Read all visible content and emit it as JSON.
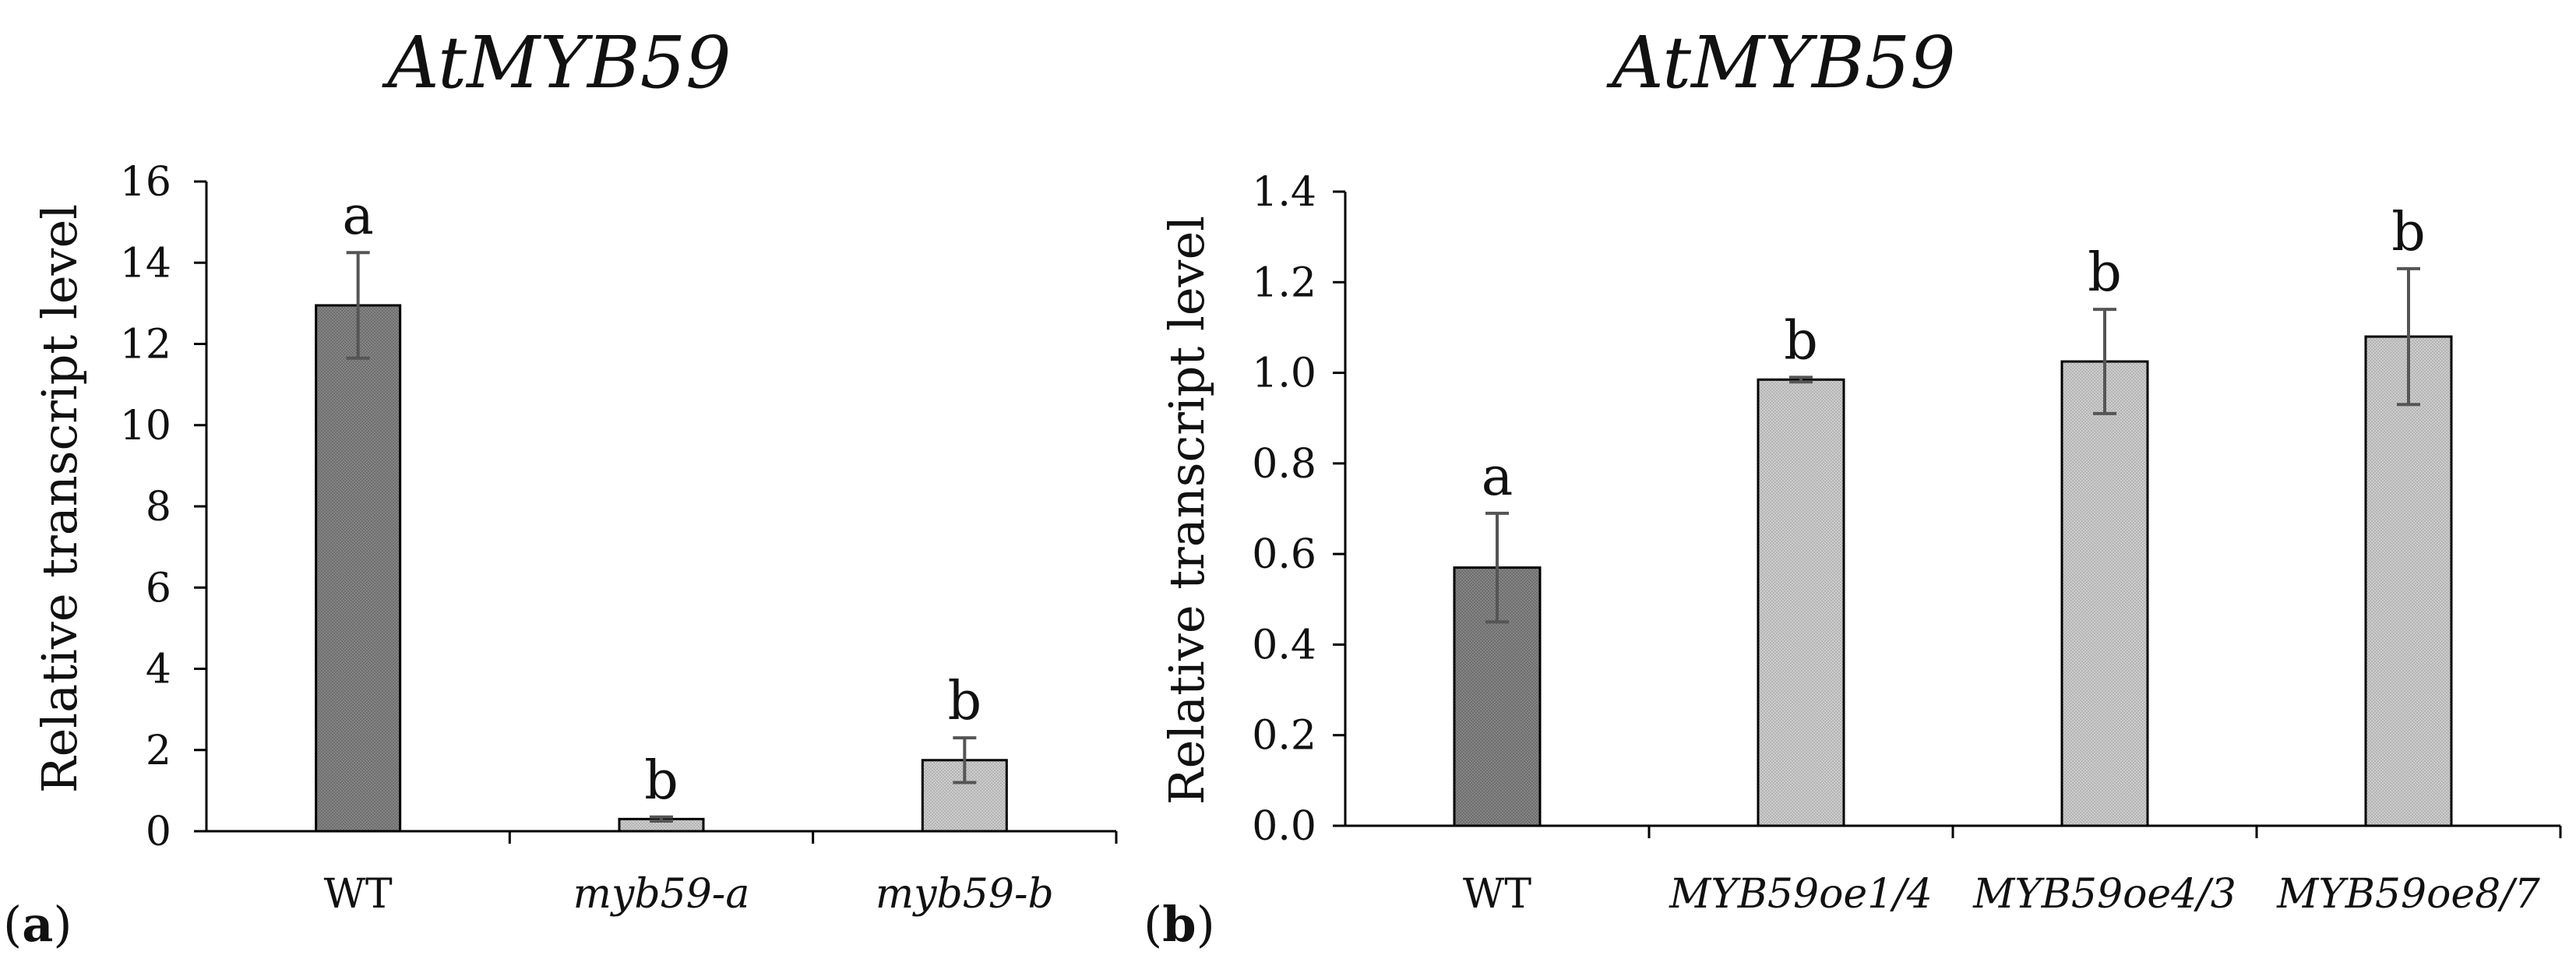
{
  "chart_data": [
    {
      "type": "bar",
      "panel": "a",
      "title": "AtMYB59",
      "xlabel": "",
      "ylabel": "Relative transcript level",
      "ylim": [
        0,
        16
      ],
      "yticks": [
        0,
        2,
        4,
        6,
        8,
        10,
        12,
        14,
        16
      ],
      "ytick_labels": [
        "0",
        "2",
        "4",
        "6",
        "8",
        "10",
        "12",
        "14",
        "16"
      ],
      "categories": [
        "WT",
        "myb59-a",
        "myb59-b"
      ],
      "categories_italic": [
        false,
        true,
        true
      ],
      "values": [
        12.95,
        0.3,
        1.75
      ],
      "errors": [
        1.3,
        0.05,
        0.55
      ],
      "sig_letters": [
        "a",
        "b",
        "b"
      ],
      "bar_fill": [
        "dark",
        "light",
        "light"
      ]
    },
    {
      "type": "bar",
      "panel": "b",
      "title": "AtMYB59",
      "xlabel": "",
      "ylabel": "Relative transcript level",
      "ylim": [
        0,
        1.4
      ],
      "yticks": [
        0,
        0.2,
        0.4,
        0.6,
        0.8,
        1.0,
        1.2,
        1.4
      ],
      "ytick_labels": [
        "0.0",
        "0.2",
        "0.4",
        "0.6",
        "0.8",
        "1.0",
        "1.2",
        "1.4"
      ],
      "categories": [
        "WT",
        "MYB59oe1/4",
        "MYB59oe4/3",
        "MYB59oe8/7"
      ],
      "categories_italic": [
        false,
        true,
        true,
        true
      ],
      "values": [
        0.57,
        0.985,
        1.025,
        1.08
      ],
      "errors": [
        0.12,
        0.005,
        0.115,
        0.15
      ],
      "sig_letters": [
        "a",
        "b",
        "b",
        "b"
      ],
      "bar_fill": [
        "dark",
        "light",
        "light",
        "light"
      ]
    }
  ],
  "panel_labels": {
    "a_open": "(",
    "a": "a",
    "a_close": ")",
    "b_open": "(",
    "b": "b",
    "b_close": ")"
  },
  "colors": {
    "dark_bar": "#7a7a7a",
    "light_bar": "#c4c4c4",
    "axis": "#000000",
    "error": "#555555"
  }
}
